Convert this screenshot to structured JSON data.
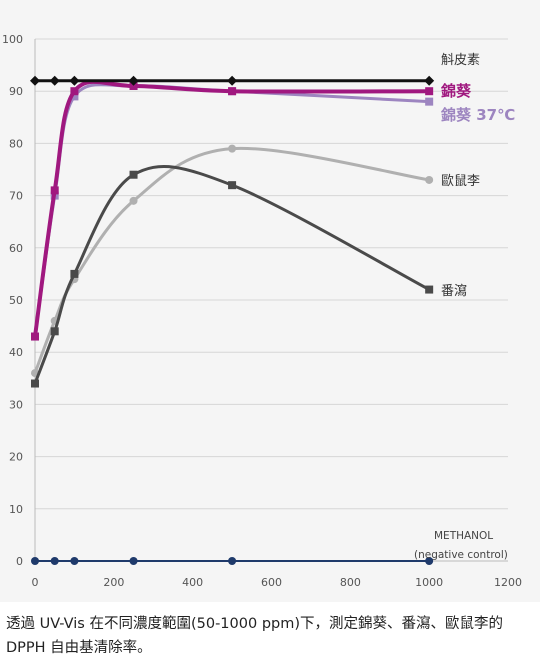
{
  "chart_data": {
    "type": "line",
    "ylim": [
      0,
      100
    ],
    "xlim": [
      0,
      1200
    ],
    "y_ticks": [
      "0",
      "10",
      "20",
      "30",
      "40",
      "50",
      "60",
      "70",
      "80",
      "90",
      "100"
    ],
    "x_ticks": [
      "0",
      "200",
      "400",
      "600",
      "800",
      "1000",
      "1200"
    ],
    "grid": "horizontal",
    "series": [
      {
        "name": "斛皮素",
        "color": "#111111",
        "marker": "diamond",
        "x": [
          0,
          50,
          100,
          250,
          500,
          1000
        ],
        "y": [
          92,
          92,
          92,
          92,
          92,
          92
        ]
      },
      {
        "name": "錦葵",
        "color": "#a0187f",
        "marker": "square",
        "x": [
          0,
          50,
          100,
          250,
          500,
          1000
        ],
        "y": [
          43,
          71,
          90,
          91,
          90,
          90
        ]
      },
      {
        "name": "錦葵 37℃",
        "color": "#9d85c0",
        "marker": "square",
        "x": [
          0,
          50,
          100,
          250,
          500,
          1000
        ],
        "y": [
          43,
          70,
          89,
          91,
          90,
          88
        ]
      },
      {
        "name": "歐鼠李",
        "color": "#b0b0b0",
        "marker": "circle",
        "x": [
          0,
          50,
          100,
          250,
          500,
          1000
        ],
        "y": [
          36,
          46,
          54,
          69,
          79,
          73
        ]
      },
      {
        "name": "番瀉",
        "color": "#4a4a4a",
        "marker": "square",
        "x": [
          0,
          50,
          100,
          250,
          500,
          1000
        ],
        "y": [
          34,
          44,
          55,
          74,
          72,
          52
        ]
      },
      {
        "name": "METHANOL",
        "color": "#1f3a6b",
        "marker": "circle",
        "x": [
          0,
          50,
          100,
          250,
          500,
          1000
        ],
        "y": [
          0,
          0,
          0,
          0,
          0,
          0
        ]
      }
    ],
    "annotations": {
      "methanol_line1": "METHANOL",
      "methanol_line2": "(negative control)"
    }
  },
  "caption": "透過 UV-Vis 在不同濃度範圍(50-1000 ppm)下，測定錦葵、番瀉、歐鼠李的 DPPH 自由基清除率。"
}
